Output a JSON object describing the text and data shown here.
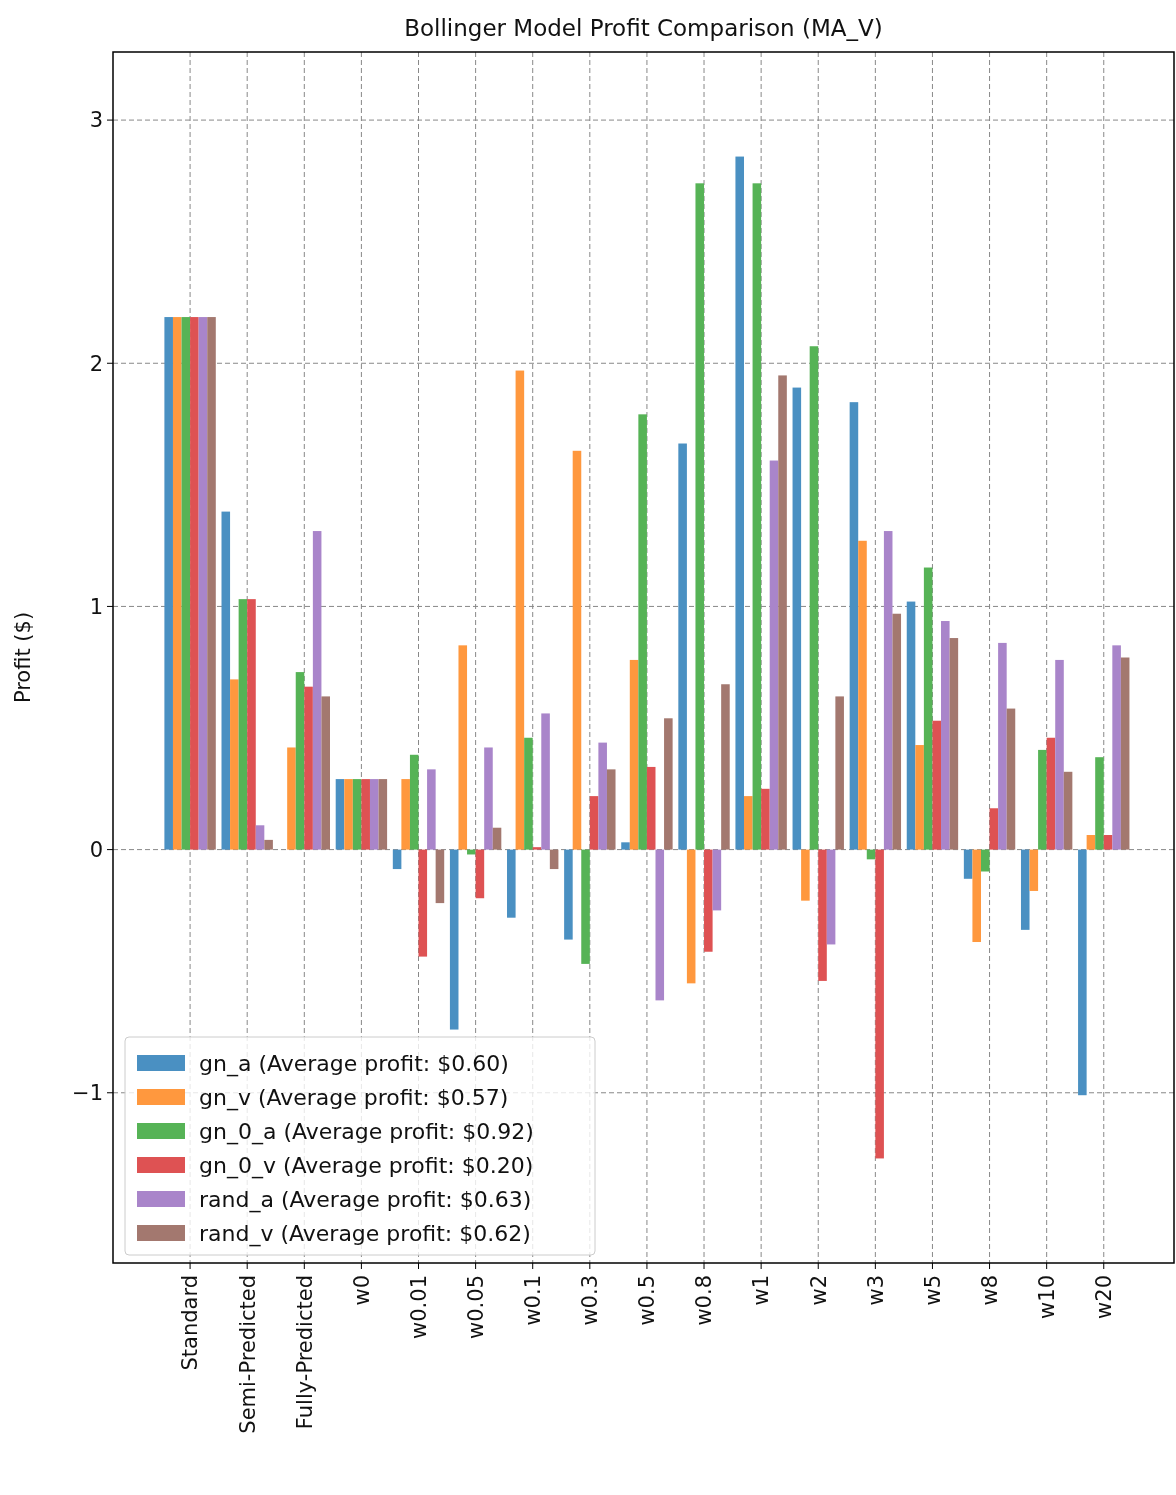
{
  "chart_data": {
    "type": "bar",
    "title": "Bollinger Model Profit Comparison (MA_V)",
    "ylabel": "Profit ($)",
    "categories": [
      "Standard",
      "Semi-Predicted",
      "Fully-Predicted",
      "w0",
      "w0.01",
      "w0.05",
      "w0.1",
      "w0.3",
      "w0.5",
      "w0.8",
      "w1",
      "w2",
      "w3",
      "w5",
      "w8",
      "w10",
      "w20"
    ],
    "series": [
      {
        "name": "gn_a (Average profit: $0.60)",
        "color": "#4a90c2",
        "values": [
          2.19,
          1.39,
          0,
          0.29,
          -0.08,
          -0.74,
          -0.28,
          -0.37,
          0.03,
          1.67,
          2.85,
          1.9,
          1.84,
          1.02,
          -0.12,
          -0.33,
          -1.01
        ]
      },
      {
        "name": "gn_v (Average profit: $0.57)",
        "color": "#ff983e",
        "values": [
          2.19,
          0.7,
          0.42,
          0.29,
          0.29,
          0.84,
          1.97,
          1.64,
          0.78,
          -0.55,
          0.22,
          -0.21,
          1.27,
          0.43,
          -0.38,
          -0.17,
          0.06
        ]
      },
      {
        "name": "gn_0_a (Average profit: $0.92)",
        "color": "#56b356",
        "values": [
          2.19,
          1.03,
          0.73,
          0.29,
          0.39,
          -0.02,
          0.46,
          -0.47,
          1.79,
          2.74,
          2.74,
          2.07,
          -0.04,
          1.16,
          -0.09,
          0.41,
          0.38
        ]
      },
      {
        "name": "gn_0_v (Average profit: $0.20)",
        "color": "#de5253",
        "values": [
          2.19,
          1.03,
          0.67,
          0.29,
          -0.44,
          -0.2,
          0.01,
          0.22,
          0.34,
          -0.42,
          0.25,
          -0.54,
          -1.27,
          0.53,
          0.17,
          0.46,
          0.06
        ]
      },
      {
        "name": "rand_a (Average profit: $0.63)",
        "color": "#a985ca",
        "values": [
          2.19,
          0.1,
          1.31,
          0.29,
          0.33,
          0.42,
          0.56,
          0.44,
          -0.62,
          -0.25,
          1.6,
          -0.39,
          1.31,
          0.94,
          0.85,
          0.78,
          0.84
        ]
      },
      {
        "name": "rand_v (Average profit: $0.62)",
        "color": "#a3786f",
        "values": [
          2.19,
          0.04,
          0.63,
          0.29,
          -0.22,
          0.09,
          -0.08,
          0.33,
          0.54,
          0.68,
          1.95,
          0.63,
          0.97,
          0.87,
          0.58,
          0.32,
          0.79
        ]
      }
    ],
    "ylim": [
      -1.7,
      3.28
    ],
    "yticks": [
      {
        "value": -1,
        "label": "−1"
      },
      0,
      1,
      2,
      3
    ],
    "grid": true,
    "legend": "bottom left"
  }
}
